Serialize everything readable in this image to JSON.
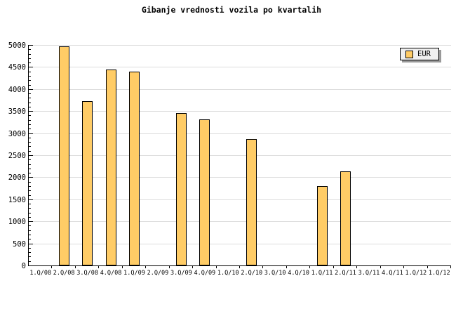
{
  "title": "Gibanje vrednosti vozila po kvartalih",
  "legend": {
    "label": "EUR",
    "swatch_color": "#FFCC66"
  },
  "chart_data": {
    "type": "bar",
    "title": "Gibanje vrednosti vozila po kvartalih",
    "categories": [
      "1.Q/08",
      "2.Q/08",
      "3.Q/08",
      "4.Q/08",
      "1.Q/09",
      "2.Q/09",
      "3.Q/09",
      "4.Q/09",
      "1.Q/10",
      "2.Q/10",
      "3.Q/10",
      "4.Q/10",
      "1.Q/11",
      "2.Q/11",
      "3.Q/11",
      "4.Q/11",
      "1.Q/12",
      "1.Q/12"
    ],
    "series": [
      {
        "name": "EUR",
        "values": [
          null,
          4970,
          3720,
          4450,
          4390,
          null,
          3460,
          3310,
          null,
          2860,
          null,
          null,
          1800,
          2140,
          null,
          null,
          null,
          null
        ]
      }
    ],
    "xlabel": "",
    "ylabel": "",
    "ylim": [
      0,
      5000
    ],
    "ytick_step": 500,
    "ytick_minor_step": 100,
    "grid": "horizontal-major",
    "legend_position": "top-right",
    "colors": {
      "bar_fill": "#FFCC66",
      "bar_border": "#000000",
      "grid": "#DCDCDC",
      "axis": "#000000",
      "background": "#FFFFFF",
      "legend_bg": "#EFEFEF",
      "legend_shadow": "#999999",
      "text": "#000000"
    }
  }
}
